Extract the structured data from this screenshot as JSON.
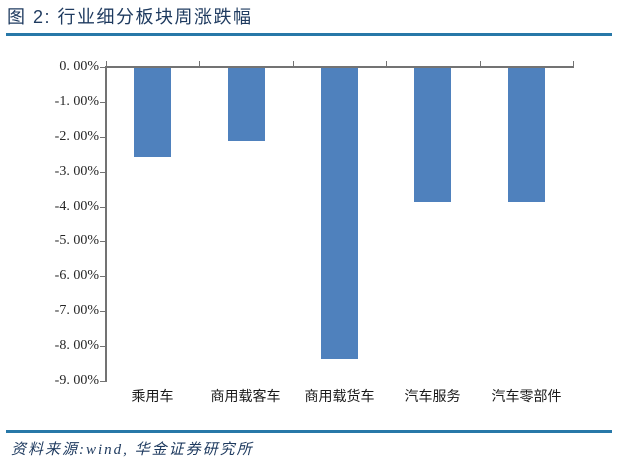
{
  "figure": {
    "title": "图 2: 行业细分板块周涨跌幅",
    "source": "资料来源:wind, 华金证券研究所"
  },
  "colors": {
    "bar": "#4f81bd",
    "axis": "#737373",
    "accent_rule": "#2878a8",
    "title_text": "#1e3a5f",
    "tick_text": "#262626"
  },
  "chart_data": {
    "type": "bar",
    "title": "行业细分板块周涨跌幅",
    "categories": [
      "乘用车",
      "商用载客车",
      "商用载货车",
      "汽车服务",
      "汽车零部件"
    ],
    "values": [
      -2.55,
      -2.1,
      -8.35,
      -3.85,
      -3.85
    ],
    "xlabel": "",
    "ylabel": "",
    "ylim": [
      -9,
      0
    ],
    "ytick_step": 1,
    "ytick_labels": [
      "0. 00%",
      "-1. 00%",
      "-2. 00%",
      "-3. 00%",
      "-4. 00%",
      "-5. 00%",
      "-6. 00%",
      "-7. 00%",
      "-8. 00%",
      "-9. 00%"
    ],
    "grid": false,
    "legend": false,
    "bar_color": "#4f81bd"
  }
}
